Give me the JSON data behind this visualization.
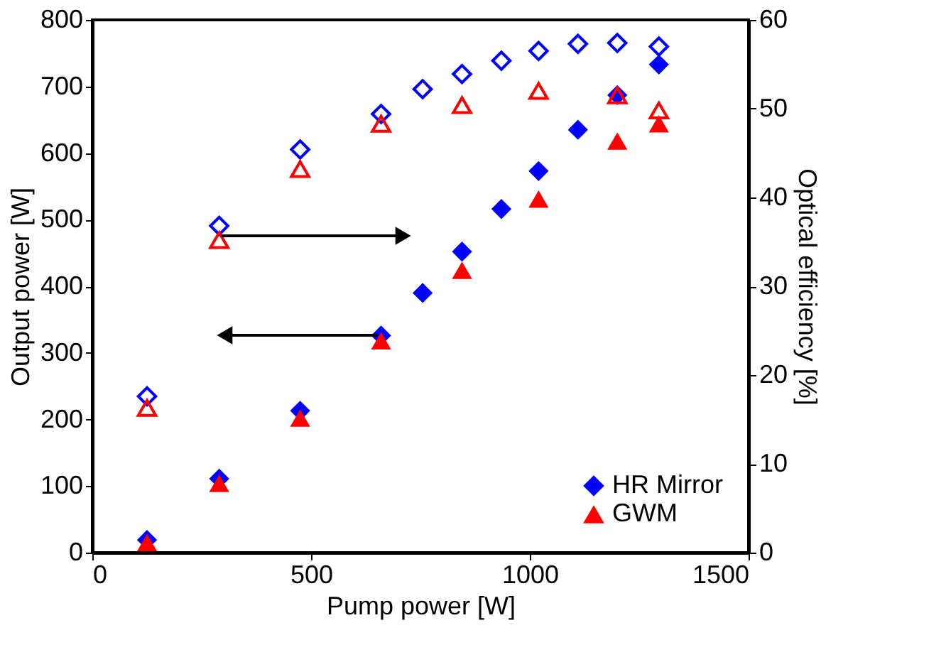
{
  "chart_data": {
    "type": "scatter",
    "xlabel": "Pump power [W]",
    "ylabel": "Output power [W]",
    "y2label": "Optical efficiency [%]",
    "xlim": [
      0,
      1500
    ],
    "xticks": [
      0,
      500,
      1000,
      1500
    ],
    "ylim": [
      0,
      800
    ],
    "yticks": [
      0,
      100,
      200,
      300,
      400,
      500,
      600,
      700,
      800
    ],
    "y2lim": [
      0,
      60
    ],
    "y2ticks": [
      0,
      10,
      20,
      30,
      40,
      50,
      60
    ],
    "x": [
      125,
      290,
      475,
      660,
      755,
      845,
      935,
      1020,
      1110,
      1200,
      1295
    ],
    "grid": false,
    "legend": "bottom right",
    "series": [
      {
        "name": "HR Mirror",
        "color": "#0000ff",
        "marker": "diamond",
        "values": [
          19,
          111,
          213,
          326,
          390,
          452,
          516,
          573,
          635,
          687,
          733
        ]
      },
      {
        "name": "GWM",
        "color": "#ff0000",
        "marker": "triangle",
        "values": [
          15,
          104,
          202,
          318,
          null,
          424,
          null,
          531,
          null,
          618,
          644
        ]
      },
      {
        "color": "#0000ff",
        "marker": "diamond",
        "axis": "y2",
        "values": [
          17.6,
          36.8,
          45.4,
          49.4,
          52.2,
          53.9,
          55.4,
          56.5,
          57.3,
          57.4,
          57.0
        ]
      },
      {
        "color": "#ff0000",
        "marker": "triangle",
        "axis": "y2",
        "values": [
          16.3,
          35.2,
          43.2,
          48.3,
          null,
          50.4,
          null,
          52.0,
          null,
          51.5,
          49.8
        ]
      }
    ]
  }
}
